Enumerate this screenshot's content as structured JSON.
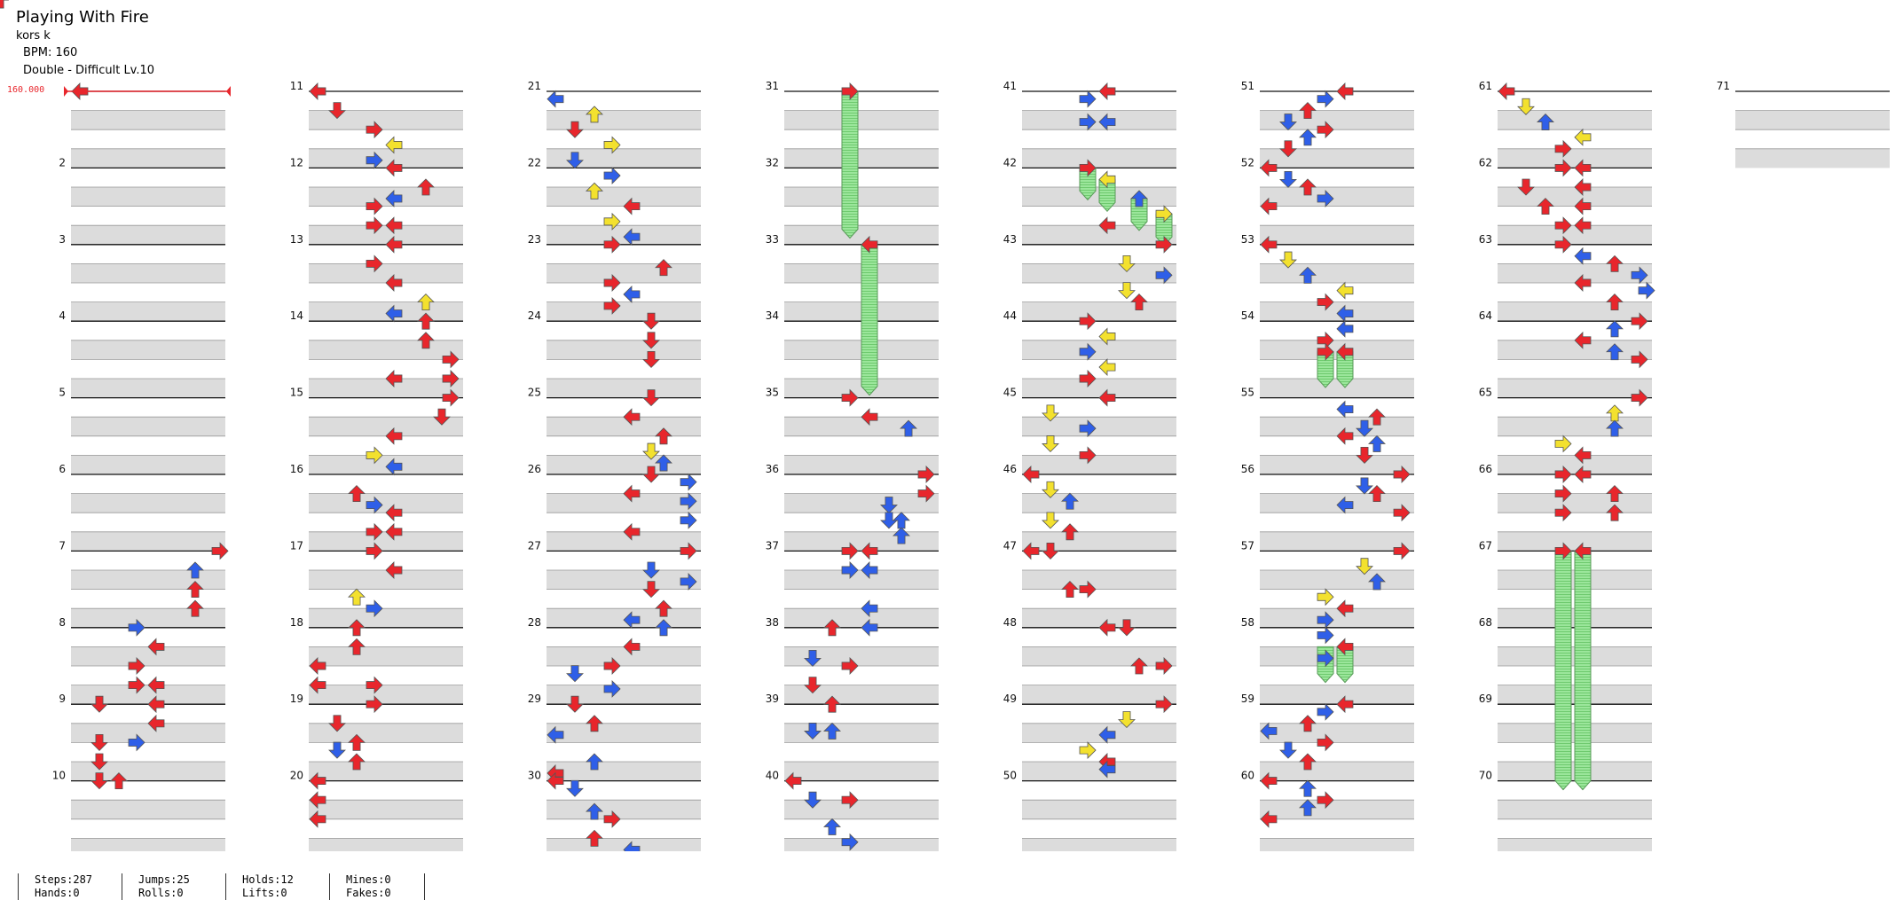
{
  "header": {
    "title": "Playing With Fire",
    "artist": "kors k",
    "bpm_line": "BPM: 160",
    "chart_type": "Double - Difficult  Lv.10"
  },
  "bpm_marker": "160.000",
  "measure_numbers": [
    "2",
    "3",
    "4",
    "5",
    "6",
    "7",
    "8",
    "9",
    "10",
    "11",
    "12",
    "13",
    "14",
    "15",
    "16",
    "17",
    "18",
    "19",
    "20",
    "21",
    "22",
    "23",
    "24",
    "25",
    "26",
    "27",
    "28",
    "29",
    "30",
    "31",
    "32",
    "33",
    "34",
    "35",
    "36",
    "37",
    "38",
    "39",
    "40",
    "41",
    "42",
    "43",
    "44",
    "45",
    "46",
    "47",
    "48",
    "49",
    "50",
    "51",
    "52",
    "53",
    "54",
    "55",
    "56",
    "57",
    "58",
    "59",
    "60",
    "61",
    "62",
    "63",
    "64",
    "65",
    "66",
    "67",
    "68",
    "69",
    "70",
    "71"
  ],
  "stats": {
    "steps": "Steps:287",
    "jumps": "Jumps:25",
    "holds": "Holds:12",
    "mines": "Mines:0",
    "hands": "Hands:0",
    "rolls": "Rolls:0",
    "lifts": "Lifts:0",
    "fakes": "Fakes:0"
  },
  "colors": {
    "quarter": "#e8262c",
    "eighth": "#2f5fe8",
    "sixteenth": "#f3e12e",
    "hold": "#8fe08f",
    "band": "#dcdcdc"
  },
  "notes": [
    {
      "m": 1.0,
      "p": "L"
    },
    {
      "m": 7.0,
      "p": "R"
    },
    {
      "m": 7.25,
      "p": "Ra"
    },
    {
      "m": 7.25,
      "p": "Rc",
      "c": "b"
    },
    {
      "m": 7.5,
      "p": "Ra"
    },
    {
      "m": 7.5,
      "p": "Rc"
    },
    {
      "m": 7.75,
      "p": "Ra"
    },
    {
      "m": 7.75,
      "p": "Rc"
    },
    {
      "m": 8.0,
      "p": "Lc",
      "c": "b"
    },
    {
      "m": 8.25,
      "p": "La"
    },
    {
      "m": 8.5,
      "p": "Lc"
    },
    {
      "m": 8.75,
      "p": "Lc"
    },
    {
      "m": 8.75,
      "p": "La"
    },
    {
      "m": 9.0,
      "p": "Ld"
    },
    {
      "m": 9.0,
      "p": "La"
    },
    {
      "m": 9.25,
      "p": "La"
    },
    {
      "m": 9.5,
      "p": "Ld"
    },
    {
      "m": 9.5,
      "p": "Lc",
      "c": "b"
    },
    {
      "m": 9.75,
      "p": "Ld"
    },
    {
      "m": 10.0,
      "p": "Ld"
    },
    {
      "m": 10.0,
      "p": "Lu"
    },
    {
      "m": 11.0,
      "p": "L"
    },
    {
      "m": 11.25,
      "p": "Ld"
    },
    {
      "m": 11.5,
      "p": "Lc"
    },
    {
      "m": 11.7,
      "p": "La",
      "c": "y"
    },
    {
      "m": 11.9,
      "p": "Lc",
      "c": "b"
    },
    {
      "m": 12.0,
      "p": "La"
    },
    {
      "m": 12.25,
      "p": "Ru"
    },
    {
      "m": 12.4,
      "p": "La",
      "c": "b"
    },
    {
      "m": 12.5,
      "p": "Lc"
    },
    {
      "m": 12.75,
      "p": "Lc"
    },
    {
      "m": 12.75,
      "p": "La"
    },
    {
      "m": 13.0,
      "p": "La"
    },
    {
      "m": 13.25,
      "p": "Lc"
    },
    {
      "m": 13.5,
      "p": "La"
    },
    {
      "m": 13.75,
      "p": "Ru",
      "c": "y"
    },
    {
      "m": 13.9,
      "p": "La",
      "c": "b"
    },
    {
      "m": 14.0,
      "p": "Ru"
    },
    {
      "m": 14.25,
      "p": "Ru"
    },
    {
      "m": 14.5,
      "p": "Rz"
    },
    {
      "m": 14.75,
      "p": "Rz"
    },
    {
      "m": 14.75,
      "p": "La"
    },
    {
      "m": 15.0,
      "p": "Rz"
    },
    {
      "m": 15.25,
      "p": "Rd"
    },
    {
      "m": 15.5,
      "p": "La"
    },
    {
      "m": 15.75,
      "p": "Lc",
      "c": "y"
    },
    {
      "m": 15.9,
      "p": "La",
      "c": "b"
    },
    {
      "m": 16.25,
      "p": "Lu"
    },
    {
      "m": 16.4,
      "p": "Lc",
      "c": "b"
    },
    {
      "m": 16.5,
      "p": "La"
    },
    {
      "m": 16.75,
      "p": "Lc"
    },
    {
      "m": 16.75,
      "p": "La"
    },
    {
      "m": 17.0,
      "p": "Lc"
    },
    {
      "m": 17.25,
      "p": "La"
    },
    {
      "m": 17.6,
      "p": "Lu",
      "c": "y"
    },
    {
      "m": 17.75,
      "p": "Lc",
      "c": "b"
    },
    {
      "m": 18.0,
      "p": "Lu"
    },
    {
      "m": 18.25,
      "p": "Lu"
    },
    {
      "m": 18.5,
      "p": "L"
    },
    {
      "m": 18.75,
      "p": "L"
    },
    {
      "m": 18.75,
      "p": "Lc"
    },
    {
      "m": 19.0,
      "p": "Lc"
    },
    {
      "m": 19.25,
      "p": "Ld"
    },
    {
      "m": 19.5,
      "p": "Lu"
    },
    {
      "m": 19.6,
      "p": "Ld",
      "c": "b"
    },
    {
      "m": 19.75,
      "p": "Lu"
    },
    {
      "m": 20.0,
      "p": "L"
    },
    {
      "m": 20.25,
      "p": "L"
    },
    {
      "m": 20.5,
      "p": "L"
    },
    {
      "m": 21.1,
      "p": "L",
      "c": "b"
    },
    {
      "m": 21.3,
      "p": "Lu",
      "c": "y"
    },
    {
      "m": 21.5,
      "p": "Ld"
    },
    {
      "m": 21.7,
      "p": "Lc",
      "c": "y"
    },
    {
      "m": 21.9,
      "p": "Ld",
      "c": "b"
    },
    {
      "m": 22.1,
      "p": "Lc",
      "c": "b"
    },
    {
      "m": 22.3,
      "p": "Lu",
      "c": "y"
    },
    {
      "m": 22.5,
      "p": "La"
    },
    {
      "m": 22.7,
      "p": "Lc",
      "c": "y"
    },
    {
      "m": 22.9,
      "p": "La",
      "c": "b"
    },
    {
      "m": 23.0,
      "p": "Lc"
    },
    {
      "m": 23.3,
      "p": "Ru"
    },
    {
      "m": 23.5,
      "p": "Lc"
    },
    {
      "m": 23.65,
      "p": "La",
      "c": "b"
    },
    {
      "m": 23.8,
      "p": "Lc"
    },
    {
      "m": 24.0,
      "p": "Ld2"
    },
    {
      "m": 24.25,
      "p": "Ld2"
    },
    {
      "m": 24.5,
      "p": "Ld2"
    },
    {
      "m": 25.0,
      "p": "Ld2"
    },
    {
      "m": 25.25,
      "p": "La"
    },
    {
      "m": 25.5,
      "p": "Ru"
    },
    {
      "m": 25.7,
      "p": "Ld2",
      "c": "y"
    },
    {
      "m": 25.85,
      "p": "Ru",
      "c": "b"
    },
    {
      "m": 26.0,
      "p": "Ld2"
    },
    {
      "m": 26.1,
      "p": "Rz",
      "c": "b"
    },
    {
      "m": 26.25,
      "p": "La"
    },
    {
      "m": 26.35,
      "p": "Rz",
      "c": "b"
    },
    {
      "m": 26.6,
      "p": "Rz",
      "c": "b"
    },
    {
      "m": 26.75,
      "p": "La"
    },
    {
      "m": 27.0,
      "p": "Rz"
    },
    {
      "m": 27.25,
      "p": "Ld2",
      "c": "b"
    },
    {
      "m": 27.4,
      "p": "Rz",
      "c": "b"
    },
    {
      "m": 27.5,
      "p": "Ld2"
    },
    {
      "m": 27.75,
      "p": "Ru"
    },
    {
      "m": 27.9,
      "p": "La",
      "c": "b"
    },
    {
      "m": 28.0,
      "p": "Ru",
      "c": "b"
    },
    {
      "m": 28.25,
      "p": "La"
    },
    {
      "m": 28.5,
      "p": "Lc"
    },
    {
      "m": 28.6,
      "p": "Ld",
      "c": "b"
    },
    {
      "m": 28.8,
      "p": "Lc",
      "c": "b"
    },
    {
      "m": 29.0,
      "p": "Ld"
    },
    {
      "m": 29.25,
      "p": "Lu"
    },
    {
      "m": 29.4,
      "p": "L",
      "c": "b"
    },
    {
      "m": 29.75,
      "p": "Lu",
      "c": "b"
    },
    {
      "m": 29.9,
      "p": "L"
    },
    {
      "m": 30.0,
      "p": "L"
    },
    {
      "m": 30.1,
      "p": "Ld",
      "c": "b"
    },
    {
      "m": 30.4,
      "p": "Lu",
      "c": "b"
    },
    {
      "m": 30.5,
      "p": "Lc"
    },
    {
      "m": 30.75,
      "p": "Lu"
    },
    {
      "m": 30.9,
      "p": "La",
      "c": "b"
    },
    {
      "m": 31.0,
      "p": "Lc"
    },
    {
      "m": 33.0,
      "p": "La"
    },
    {
      "m": 35.0,
      "p": "Lc"
    },
    {
      "m": 35.25,
      "p": "La"
    },
    {
      "m": 35.4,
      "p": "Rc",
      "c": "b"
    },
    {
      "m": 36.0,
      "p": "Rz"
    },
    {
      "m": 36.25,
      "p": "Rz"
    },
    {
      "m": 36.4,
      "p": "Ld2",
      "c": "b"
    },
    {
      "m": 36.6,
      "p": "Ld2",
      "c": "b"
    },
    {
      "m": 36.6,
      "p": "Ru",
      "c": "b"
    },
    {
      "m": 36.8,
      "p": "Ru",
      "c": "b"
    },
    {
      "m": 37.0,
      "p": "Lc"
    },
    {
      "m": 37.0,
      "p": "La"
    },
    {
      "m": 37.25,
      "p": "Lc",
      "c": "b"
    },
    {
      "m": 37.25,
      "p": "La",
      "c": "b"
    },
    {
      "m": 37.75,
      "p": "La",
      "c": "b"
    },
    {
      "m": 38.0,
      "p": "Lu"
    },
    {
      "m": 38.0,
      "p": "La",
      "c": "b"
    },
    {
      "m": 38.4,
      "p": "Ld",
      "c": "b"
    },
    {
      "m": 38.5,
      "p": "Lc"
    },
    {
      "m": 38.75,
      "p": "Ld"
    },
    {
      "m": 39.0,
      "p": "Lu"
    },
    {
      "m": 39.35,
      "p": "Ld",
      "c": "b"
    },
    {
      "m": 39.35,
      "p": "Lu",
      "c": "b"
    },
    {
      "m": 40.0,
      "p": "L"
    },
    {
      "m": 40.25,
      "p": "Ld",
      "c": "b"
    },
    {
      "m": 40.25,
      "p": "Lc"
    },
    {
      "m": 40.6,
      "p": "Lu",
      "c": "b"
    },
    {
      "m": 40.8,
      "p": "Lc",
      "c": "b"
    },
    {
      "m": 41.0,
      "p": "La"
    },
    {
      "m": 41.1,
      "p": "Lc",
      "c": "b"
    },
    {
      "m": 41.4,
      "p": "Lc",
      "c": "b"
    },
    {
      "m": 41.4,
      "p": "La",
      "c": "b"
    },
    {
      "m": 42.0,
      "p": "Lc"
    },
    {
      "m": 42.15,
      "p": "La",
      "c": "y"
    },
    {
      "m": 42.4,
      "p": "Ru",
      "c": "b"
    },
    {
      "m": 42.6,
      "p": "Rz",
      "c": "y"
    },
    {
      "m": 42.75,
      "p": "La"
    },
    {
      "m": 43.0,
      "p": "Rz"
    },
    {
      "m": 43.25,
      "p": "Ld2",
      "c": "y"
    },
    {
      "m": 43.4,
      "p": "Rz",
      "c": "b"
    },
    {
      "m": 43.6,
      "p": "Ld2",
      "c": "y"
    },
    {
      "m": 43.75,
      "p": "Ru"
    },
    {
      "m": 44.0,
      "p": "Lc"
    },
    {
      "m": 44.2,
      "p": "La",
      "c": "y"
    },
    {
      "m": 44.4,
      "p": "Lc",
      "c": "b"
    },
    {
      "m": 44.6,
      "p": "La",
      "c": "y"
    },
    {
      "m": 44.75,
      "p": "Lc"
    },
    {
      "m": 45.0,
      "p": "La"
    },
    {
      "m": 45.2,
      "p": "Ld",
      "c": "y"
    },
    {
      "m": 45.4,
      "p": "Lc",
      "c": "b"
    },
    {
      "m": 45.6,
      "p": "Ld",
      "c": "y"
    },
    {
      "m": 45.75,
      "p": "Lc"
    },
    {
      "m": 46.0,
      "p": "L"
    },
    {
      "m": 46.2,
      "p": "Ld",
      "c": "y"
    },
    {
      "m": 46.35,
      "p": "Lu",
      "c": "b"
    },
    {
      "m": 46.6,
      "p": "Ld",
      "c": "y"
    },
    {
      "m": 46.75,
      "p": "Lu"
    },
    {
      "m": 47.0,
      "p": "L"
    },
    {
      "m": 47.0,
      "p": "Ld"
    },
    {
      "m": 47.5,
      "p": "Lu"
    },
    {
      "m": 47.5,
      "p": "Lc"
    },
    {
      "m": 48.0,
      "p": "La"
    },
    {
      "m": 48.0,
      "p": "Ld2"
    },
    {
      "m": 48.5,
      "p": "Ru"
    },
    {
      "m": 48.5,
      "p": "Rz"
    },
    {
      "m": 49.0,
      "p": "Rz"
    },
    {
      "m": 49.2,
      "p": "Ld2",
      "c": "y"
    },
    {
      "m": 49.4,
      "p": "La",
      "c": "b"
    },
    {
      "m": 49.6,
      "p": "Lc",
      "c": "y"
    },
    {
      "m": 49.75,
      "p": "La"
    },
    {
      "m": 49.85,
      "p": "La",
      "c": "b"
    },
    {
      "m": 51.0,
      "p": "La"
    },
    {
      "m": 51.1,
      "p": "Lc",
      "c": "b"
    },
    {
      "m": 51.25,
      "p": "Lu"
    },
    {
      "m": 51.4,
      "p": "Ld",
      "c": "b"
    },
    {
      "m": 51.5,
      "p": "Lc"
    },
    {
      "m": 51.6,
      "p": "Lu",
      "c": "b"
    },
    {
      "m": 51.75,
      "p": "Ld"
    },
    {
      "m": 52.0,
      "p": "L"
    },
    {
      "m": 52.15,
      "p": "Ld",
      "c": "b"
    },
    {
      "m": 52.25,
      "p": "Lu"
    },
    {
      "m": 52.4,
      "p": "Lc",
      "c": "b"
    },
    {
      "m": 52.5,
      "p": "L"
    },
    {
      "m": 53.0,
      "p": "L"
    },
    {
      "m": 53.2,
      "p": "Ld",
      "c": "y"
    },
    {
      "m": 53.4,
      "p": "Lu",
      "c": "b"
    },
    {
      "m": 53.6,
      "p": "La",
      "c": "y"
    },
    {
      "m": 53.75,
      "p": "Lc"
    },
    {
      "m": 53.9,
      "p": "La",
      "c": "b"
    },
    {
      "m": 54.1,
      "p": "La",
      "c": "b"
    },
    {
      "m": 54.25,
      "p": "Lc"
    },
    {
      "m": 54.4,
      "p": "Lc"
    },
    {
      "m": 54.4,
      "p": "La"
    },
    {
      "m": 55.15,
      "p": "La",
      "c": "b"
    },
    {
      "m": 55.25,
      "p": "Ru"
    },
    {
      "m": 55.4,
      "p": "Ld2",
      "c": "b"
    },
    {
      "m": 55.5,
      "p": "La"
    },
    {
      "m": 55.6,
      "p": "Ru",
      "c": "b"
    },
    {
      "m": 55.75,
      "p": "Ld2"
    },
    {
      "m": 56.0,
      "p": "Rz"
    },
    {
      "m": 56.15,
      "p": "Ld2",
      "c": "b"
    },
    {
      "m": 56.25,
      "p": "Ru"
    },
    {
      "m": 56.4,
      "p": "La",
      "c": "b"
    },
    {
      "m": 56.5,
      "p": "Rz"
    },
    {
      "m": 57.0,
      "p": "Rz"
    },
    {
      "m": 57.2,
      "p": "Ld2",
      "c": "y"
    },
    {
      "m": 57.4,
      "p": "Ru",
      "c": "b"
    },
    {
      "m": 57.6,
      "p": "Lc",
      "c": "y"
    },
    {
      "m": 57.75,
      "p": "La"
    },
    {
      "m": 57.9,
      "p": "Lc",
      "c": "b"
    },
    {
      "m": 58.1,
      "p": "Lc",
      "c": "b"
    },
    {
      "m": 58.25,
      "p": "La"
    },
    {
      "m": 58.4,
      "p": "Lc",
      "c": "b"
    },
    {
      "m": 59.0,
      "p": "La"
    },
    {
      "m": 59.1,
      "p": "Lc",
      "c": "b"
    },
    {
      "m": 59.25,
      "p": "Lu"
    },
    {
      "m": 59.35,
      "p": "L",
      "c": "b"
    },
    {
      "m": 59.5,
      "p": "Lc"
    },
    {
      "m": 59.6,
      "p": "Ld",
      "c": "b"
    },
    {
      "m": 59.75,
      "p": "Lu"
    },
    {
      "m": 60.0,
      "p": "L"
    },
    {
      "m": 60.1,
      "p": "Lu",
      "c": "b"
    },
    {
      "m": 60.25,
      "p": "Lc"
    },
    {
      "m": 60.35,
      "p": "Lu",
      "c": "b"
    },
    {
      "m": 60.5,
      "p": "L"
    },
    {
      "m": 61.0,
      "p": "L"
    },
    {
      "m": 61.2,
      "p": "Ld",
      "c": "y"
    },
    {
      "m": 61.4,
      "p": "Lu",
      "c": "b"
    },
    {
      "m": 61.6,
      "p": "La",
      "c": "y"
    },
    {
      "m": 61.75,
      "p": "Lc"
    },
    {
      "m": 62.0,
      "p": "Lc"
    },
    {
      "m": 62.0,
      "p": "La"
    },
    {
      "m": 62.25,
      "p": "Ld"
    },
    {
      "m": 62.25,
      "p": "La"
    },
    {
      "m": 62.5,
      "p": "Lu"
    },
    {
      "m": 62.5,
      "p": "La"
    },
    {
      "m": 62.75,
      "p": "Lc"
    },
    {
      "m": 62.75,
      "p": "La"
    },
    {
      "m": 63.0,
      "p": "Lc"
    },
    {
      "m": 63.15,
      "p": "La",
      "c": "b"
    },
    {
      "m": 63.25,
      "p": "Ru"
    },
    {
      "m": 63.4,
      "p": "Rz",
      "c": "b"
    },
    {
      "m": 63.5,
      "p": "La"
    },
    {
      "m": 63.6,
      "p": "Ru2",
      "c": "b"
    },
    {
      "m": 63.75,
      "p": "Ru"
    },
    {
      "m": 64.0,
      "p": "Rz"
    },
    {
      "m": 64.1,
      "p": "Ru",
      "c": "b"
    },
    {
      "m": 64.25,
      "p": "La"
    },
    {
      "m": 64.4,
      "p": "Ru",
      "c": "b"
    },
    {
      "m": 64.5,
      "p": "Rz"
    },
    {
      "m": 65.0,
      "p": "Rz"
    },
    {
      "m": 65.2,
      "p": "Ru",
      "c": "y"
    },
    {
      "m": 65.4,
      "p": "Ru",
      "c": "b"
    },
    {
      "m": 65.6,
      "p": "Lc",
      "c": "y"
    },
    {
      "m": 65.75,
      "p": "La"
    },
    {
      "m": 66.0,
      "p": "Lc"
    },
    {
      "m": 66.0,
      "p": "La"
    },
    {
      "m": 66.25,
      "p": "Lc"
    },
    {
      "m": 66.25,
      "p": "Ru"
    },
    {
      "m": 66.5,
      "p": "Lc"
    },
    {
      "m": 66.5,
      "p": "Ru"
    },
    {
      "m": 67.0,
      "p": "Lc"
    },
    {
      "m": 67.0,
      "p": "La"
    }
  ],
  "holds": [
    {
      "start": 31.0,
      "end": 32.8,
      "p": "Lc"
    },
    {
      "start": 33.0,
      "end": 34.85,
      "p": "La"
    },
    {
      "start": 42.0,
      "end": 42.3,
      "p": "Lc"
    },
    {
      "start": 42.15,
      "end": 42.45,
      "p": "La"
    },
    {
      "start": 42.4,
      "end": 42.7,
      "p": "Ru"
    },
    {
      "start": 42.6,
      "end": 42.9,
      "p": "Rz"
    },
    {
      "start": 54.4,
      "end": 54.75,
      "p": "Lc"
    },
    {
      "start": 54.4,
      "end": 54.75,
      "p": "La"
    },
    {
      "start": 58.25,
      "end": 58.6,
      "p": "Lc"
    },
    {
      "start": 58.25,
      "end": 58.6,
      "p": "La"
    },
    {
      "start": 67.0,
      "end": 70.0,
      "p": "Lc"
    },
    {
      "start": 67.0,
      "end": 70.0,
      "p": "La"
    }
  ]
}
